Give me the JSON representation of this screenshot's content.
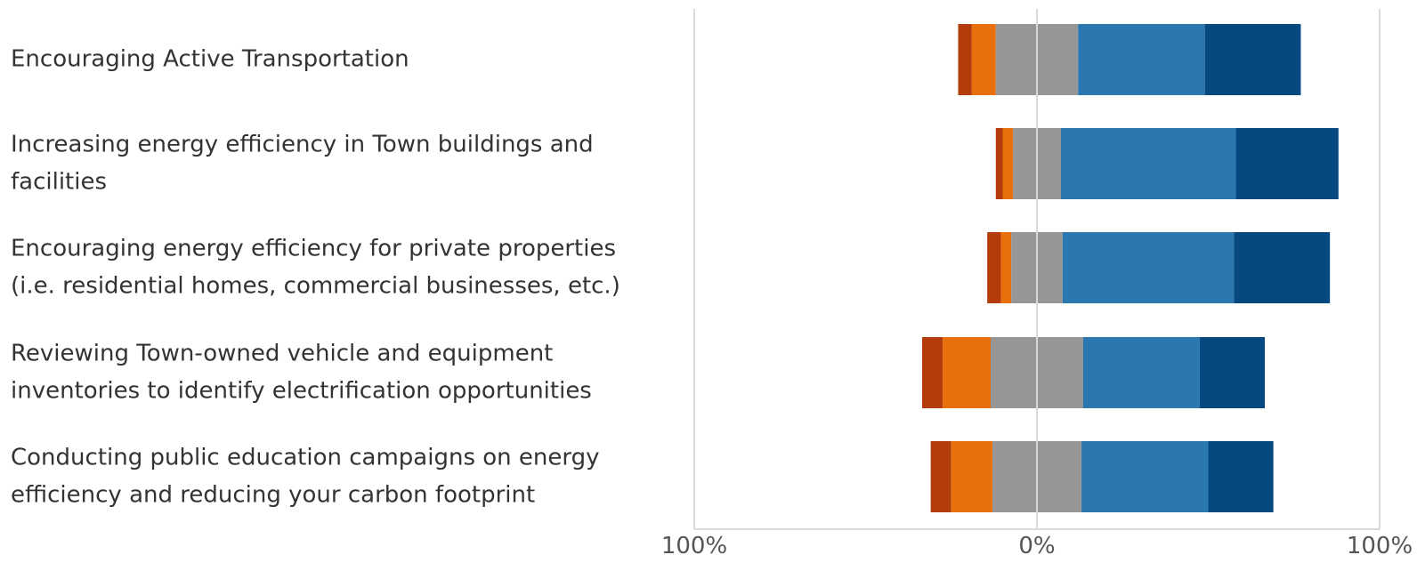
{
  "chart_data": {
    "type": "bar",
    "orientation": "horizontal",
    "stacked": "diverging",
    "title": "",
    "xlabel": "",
    "ylabel": "",
    "xlim": [
      -100,
      100
    ],
    "x_tick_labels": [
      "100%",
      "0%",
      "100%"
    ],
    "grid": true,
    "legend": "none",
    "categories": [
      "Encouraging Active Transportation",
      "Increasing energy efficiency in Town buildings and facilities",
      "Encouraging energy efficiency for private properties (i.e. residential homes, commercial businesses, etc.)",
      "Reviewing Town-owned vehicle and equipment inventories to identify electrification opportunities",
      "Conducting public education campaigns on energy efficiency and reducing your carbon footprint"
    ],
    "category_lines": [
      [
        "Encouraging Active Transportation"
      ],
      [
        "Increasing energy efficiency in Town buildings and",
        "facilities"
      ],
      [
        "Encouraging energy efficiency for private properties",
        "(i.e. residential homes, commercial businesses, etc.)"
      ],
      [
        "Reviewing Town-owned vehicle and equipment",
        "inventories to identify electrification opportunities"
      ],
      [
        "Conducting public education campaigns on energy",
        "efficiency and reducing your carbon footprint"
      ]
    ],
    "series": [
      {
        "color": "#b33c0a",
        "side": "negative",
        "values": [
          4,
          2,
          4,
          6,
          6
        ]
      },
      {
        "color": "#e8700c",
        "side": "negative",
        "values": [
          7,
          3,
          3,
          14,
          12
        ]
      },
      {
        "color": "#969696",
        "side": "neutral",
        "values": [
          24,
          14,
          15,
          27,
          26
        ]
      },
      {
        "color": "#2b78b0",
        "side": "positive",
        "values": [
          37,
          51,
          50,
          34,
          37
        ]
      },
      {
        "color": "#064880",
        "side": "positive",
        "values": [
          28,
          30,
          28,
          19,
          19
        ]
      }
    ]
  }
}
